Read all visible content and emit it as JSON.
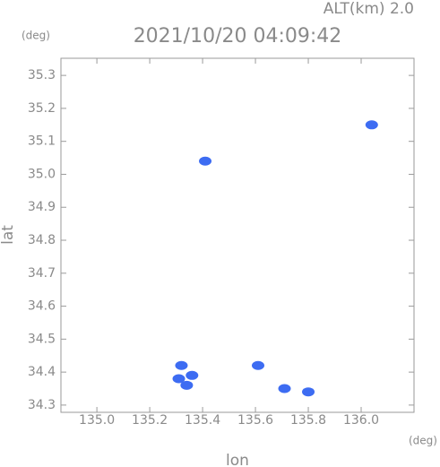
{
  "chart_data": {
    "type": "scatter",
    "title": "2021/10/20 04:09:42",
    "subtitle": "ALT(km) 2.0",
    "y_unit": "(deg)",
    "x_unit": "(deg)",
    "xlabel": "lon",
    "ylabel": "lat",
    "x": [
      135.41,
      136.04,
      135.32,
      135.36,
      135.31,
      135.34,
      135.61,
      135.71,
      135.8
    ],
    "values": [
      35.04,
      35.15,
      34.42,
      34.39,
      34.38,
      34.36,
      34.42,
      34.35,
      34.34
    ],
    "color": "#3d6cf2",
    "xlim": [
      134.864,
      136.2
    ],
    "ylim": [
      34.278,
      35.352
    ],
    "xticks": [
      {
        "value": 135,
        "label": "135.0"
      },
      135.2,
      135.4,
      135.6,
      135.8,
      {
        "value": 136,
        "label": "136.0"
      }
    ],
    "yticks": [
      34.3,
      34.4,
      34.5,
      34.6,
      34.7,
      34.8,
      34.9,
      {
        "value": 35,
        "label": "35.0"
      },
      35.1,
      35.2,
      35.3
    ]
  }
}
